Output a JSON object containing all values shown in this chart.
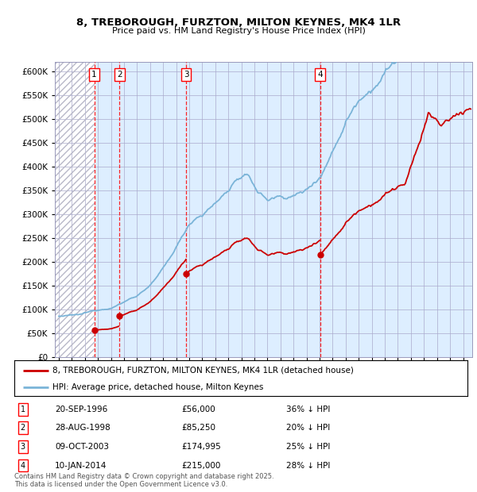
{
  "title": "8, TREBOROUGH, FURZTON, MILTON KEYNES, MK4 1LR",
  "subtitle": "Price paid vs. HM Land Registry's House Price Index (HPI)",
  "hpi_color": "#7ab4d8",
  "price_color": "#cc0000",
  "bg_color": "#ddeeff",
  "hatch_color": "#c0c0c8",
  "grid_color": "#aaaacc",
  "purchases": [
    {
      "num": 1,
      "date_label": "20-SEP-1996",
      "price": 56000,
      "pct": "36%",
      "x_year": 1996.72
    },
    {
      "num": 2,
      "date_label": "28-AUG-1998",
      "price": 85250,
      "pct": "20%",
      "x_year": 1998.66
    },
    {
      "num": 3,
      "date_label": "09-OCT-2003",
      "price": 174995,
      "pct": "25%",
      "x_year": 2003.77
    },
    {
      "num": 4,
      "date_label": "10-JAN-2014",
      "price": 215000,
      "pct": "28%",
      "x_year": 2014.03
    }
  ],
  "legend_price_label": "8, TREBOROUGH, FURZTON, MILTON KEYNES, MK4 1LR (detached house)",
  "legend_hpi_label": "HPI: Average price, detached house, Milton Keynes",
  "footer": "Contains HM Land Registry data © Crown copyright and database right 2025.\nThis data is licensed under the Open Government Licence v3.0.",
  "ylim": [
    0,
    620000
  ],
  "yticks": [
    0,
    50000,
    100000,
    150000,
    200000,
    250000,
    300000,
    350000,
    400000,
    450000,
    500000,
    550000,
    600000
  ],
  "xlim_start": 1993.7,
  "xlim_end": 2025.7
}
